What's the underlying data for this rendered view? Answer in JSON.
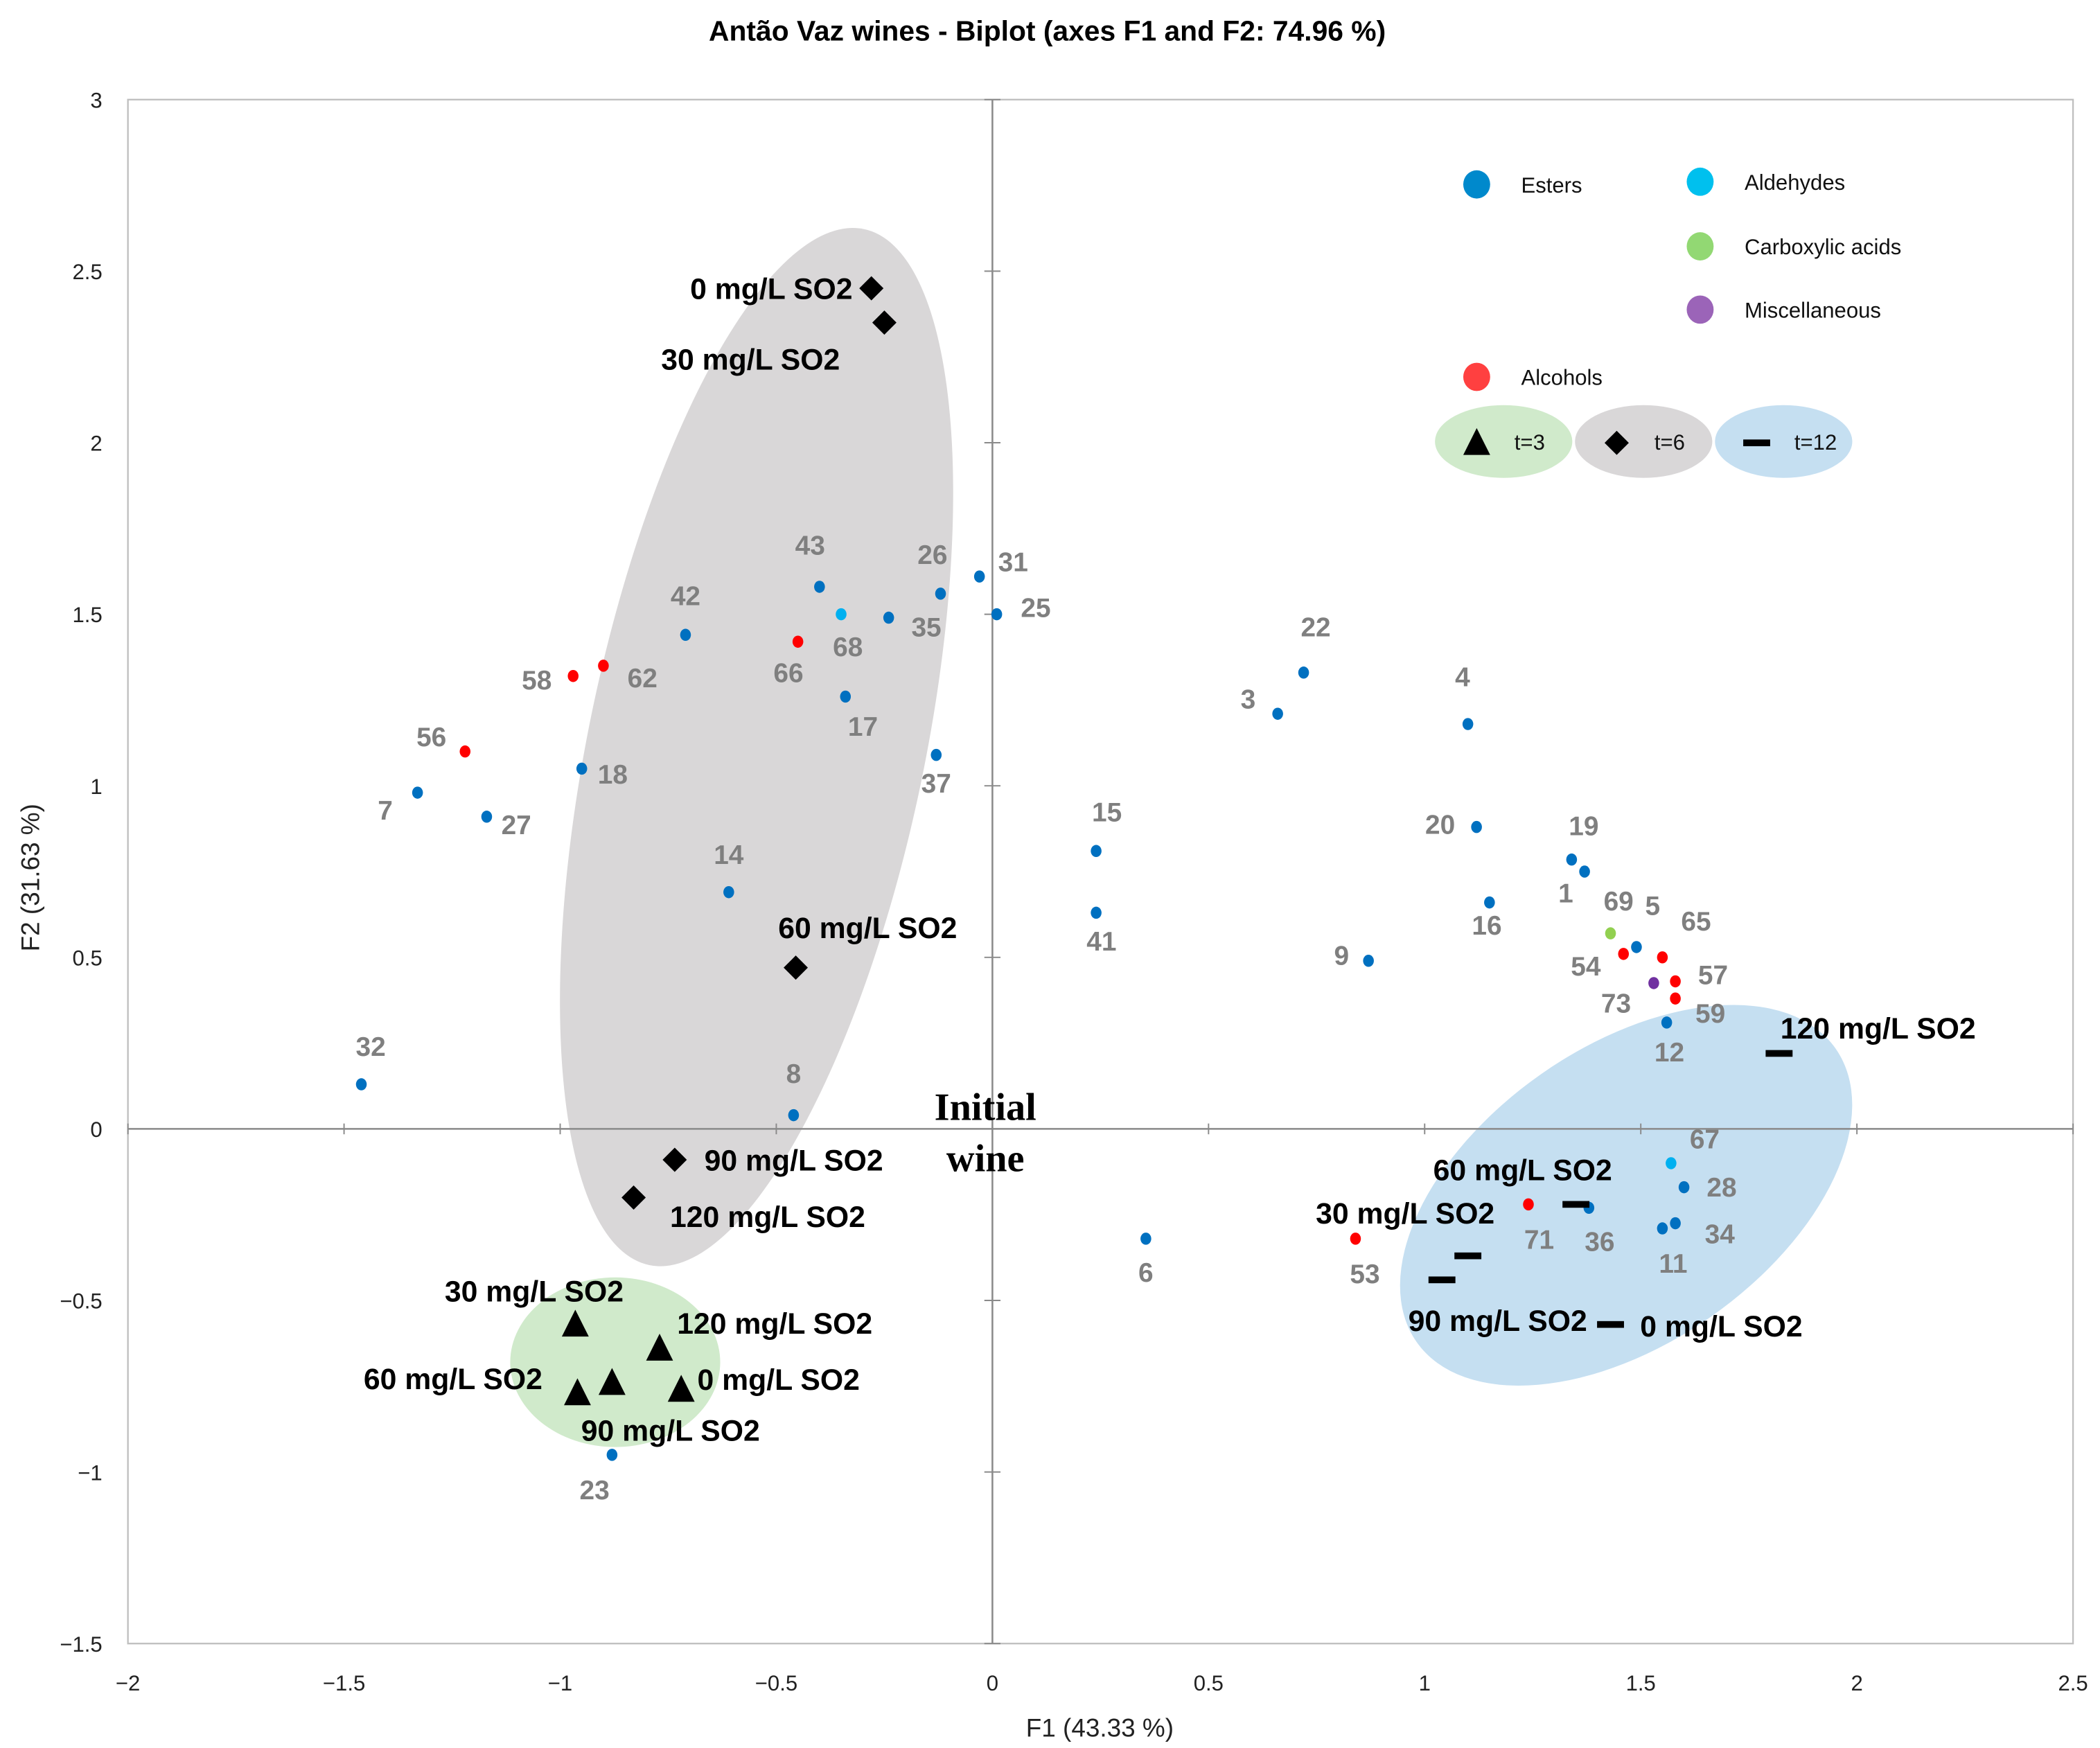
{
  "chart_data": {
    "type": "scatter",
    "title": "Antão Vaz wines - Biplot (axes F1 and F2: 74.96 %)",
    "xlabel": "F1 (43.33 %)",
    "ylabel": "F2 (31.63 %)",
    "xlim": [
      -2,
      2.5
    ],
    "ylim": [
      -1.5,
      3
    ],
    "xticks": [
      "−2",
      "−1.5",
      "−1",
      "−0.5",
      "0",
      "0.5",
      "1",
      "1.5",
      "2",
      "2.5"
    ],
    "xtick_values": [
      -2,
      -1.5,
      -1,
      -0.5,
      0,
      0.5,
      1,
      1.5,
      2,
      2.5
    ],
    "yticks": [
      "−1.5",
      "−1",
      "−0.5",
      "0",
      "0.5",
      "1",
      "1.5",
      "2",
      "2.5",
      "3"
    ],
    "ytick_values": [
      -1.5,
      -1,
      -0.5,
      0,
      0.5,
      1,
      1.5,
      2,
      2.5,
      3
    ],
    "grid": false,
    "legend_placement": "top-right",
    "categories": [
      {
        "name": "Esters",
        "color": "#0070C0",
        "legend_color": "#0089CC"
      },
      {
        "name": "Aldehydes",
        "color": "#00B0F0",
        "legend_color": "#00C0EE"
      },
      {
        "name": "Carboxylic acids",
        "color": "#92D050",
        "legend_color": "#92D873"
      },
      {
        "name": "Miscellaneous",
        "color": "#7030A0",
        "legend_color": "#9B64B8"
      },
      {
        "name": "Alcohols",
        "color": "#FF0000",
        "legend_color": "#FF4040"
      }
    ],
    "variables": [
      {
        "id": "7",
        "category": "Esters",
        "x": -1.33,
        "y": 0.98
      },
      {
        "id": "27",
        "category": "Esters",
        "x": -1.17,
        "y": 0.91
      },
      {
        "id": "18",
        "category": "Esters",
        "x": -0.95,
        "y": 1.05
      },
      {
        "id": "56",
        "category": "Alcohols",
        "x": -1.22,
        "y": 1.1
      },
      {
        "id": "58",
        "category": "Alcohols",
        "x": -0.97,
        "y": 1.32
      },
      {
        "id": "62",
        "category": "Alcohols",
        "x": -0.9,
        "y": 1.35
      },
      {
        "id": "42",
        "category": "Esters",
        "x": -0.71,
        "y": 1.44
      },
      {
        "id": "43",
        "category": "Esters",
        "x": -0.4,
        "y": 1.58
      },
      {
        "id": "68",
        "category": "Aldehydes",
        "x": -0.35,
        "y": 1.5
      },
      {
        "id": "66",
        "category": "Alcohols",
        "x": -0.45,
        "y": 1.42
      },
      {
        "id": "35",
        "category": "Esters",
        "x": -0.24,
        "y": 1.49
      },
      {
        "id": "26",
        "category": "Esters",
        "x": -0.12,
        "y": 1.56
      },
      {
        "id": "31",
        "category": "Esters",
        "x": -0.03,
        "y": 1.61
      },
      {
        "id": "25",
        "category": "Esters",
        "x": 0.01,
        "y": 1.5
      },
      {
        "id": "17",
        "category": "Esters",
        "x": -0.34,
        "y": 1.26
      },
      {
        "id": "37",
        "category": "Esters",
        "x": -0.13,
        "y": 1.09
      },
      {
        "id": "14",
        "category": "Esters",
        "x": -0.61,
        "y": 0.69
      },
      {
        "id": "32",
        "category": "Esters",
        "x": -1.46,
        "y": 0.13
      },
      {
        "id": "8",
        "category": "Esters",
        "x": -0.46,
        "y": 0.04
      },
      {
        "id": "23",
        "category": "Esters",
        "x": -0.88,
        "y": -0.95
      },
      {
        "id": "6",
        "category": "Esters",
        "x": 0.355,
        "y": -0.32
      },
      {
        "id": "15",
        "category": "Esters",
        "x": 0.24,
        "y": 0.81
      },
      {
        "id": "41",
        "category": "Esters",
        "x": 0.24,
        "y": 0.63
      },
      {
        "id": "3",
        "category": "Esters",
        "x": 0.66,
        "y": 1.21
      },
      {
        "id": "22",
        "category": "Esters",
        "x": 0.72,
        "y": 1.33
      },
      {
        "id": "4",
        "category": "Esters",
        "x": 1.1,
        "y": 1.18
      },
      {
        "id": "20",
        "category": "Esters",
        "x": 1.12,
        "y": 0.88
      },
      {
        "id": "19",
        "category": "Esters",
        "x": 1.34,
        "y": 0.785
      },
      {
        "id": "1",
        "category": "Esters",
        "x": 1.37,
        "y": 0.75
      },
      {
        "id": "16",
        "category": "Esters",
        "x": 1.15,
        "y": 0.66
      },
      {
        "id": "9",
        "category": "Esters",
        "x": 0.87,
        "y": 0.49
      },
      {
        "id": "69",
        "category": "Carboxylic acids",
        "x": 1.43,
        "y": 0.57
      },
      {
        "id": "5",
        "category": "Esters",
        "x": 1.49,
        "y": 0.53
      },
      {
        "id": "54",
        "category": "Alcohols",
        "x": 1.46,
        "y": 0.51
      },
      {
        "id": "65",
        "category": "Alcohols",
        "x": 1.55,
        "y": 0.5
      },
      {
        "id": "57",
        "category": "Alcohols",
        "x": 1.58,
        "y": 0.43
      },
      {
        "id": "73",
        "category": "Miscellaneous",
        "x": 1.53,
        "y": 0.425
      },
      {
        "id": "59",
        "category": "Alcohols",
        "x": 1.58,
        "y": 0.38
      },
      {
        "id": "12",
        "category": "Esters",
        "x": 1.56,
        "y": 0.31
      },
      {
        "id": "67",
        "category": "Aldehydes",
        "x": 1.57,
        "y": -0.1
      },
      {
        "id": "28",
        "category": "Esters",
        "x": 1.6,
        "y": -0.17
      },
      {
        "id": "36",
        "category": "Esters",
        "x": 1.38,
        "y": -0.23
      },
      {
        "id": "71",
        "category": "Alcohols",
        "x": 1.24,
        "y": -0.22
      },
      {
        "id": "11",
        "category": "Esters",
        "x": 1.55,
        "y": -0.29
      },
      {
        "id": "34",
        "category": "Esters",
        "x": 1.58,
        "y": -0.275
      },
      {
        "id": "53",
        "category": "Alcohols",
        "x": 0.84,
        "y": -0.32
      }
    ],
    "samples": [
      {
        "group": "t=6",
        "marker": "diamond",
        "label": "0 mg/L SO2",
        "x": -0.28,
        "y": 2.45
      },
      {
        "group": "t=6",
        "marker": "diamond",
        "label": "30 mg/L SO2",
        "x": -0.25,
        "y": 2.35
      },
      {
        "group": "t=6",
        "marker": "diamond",
        "label": "60 mg/L SO2",
        "x": -0.455,
        "y": 0.47
      },
      {
        "group": "t=6",
        "marker": "diamond",
        "label": "90 mg/L SO2",
        "x": -0.735,
        "y": -0.09
      },
      {
        "group": "t=6",
        "marker": "diamond",
        "label": "120 mg/L SO2",
        "x": -0.83,
        "y": -0.2
      },
      {
        "group": "t=3",
        "marker": "triangle",
        "label": "30 mg/L SO2",
        "x": -0.965,
        "y": -0.57
      },
      {
        "group": "t=3",
        "marker": "triangle",
        "label": "120 mg/L SO2",
        "x": -0.77,
        "y": -0.64
      },
      {
        "group": "t=3",
        "marker": "triangle",
        "label": "60 mg/L SO2",
        "x": -0.96,
        "y": -0.77
      },
      {
        "group": "t=3",
        "marker": "triangle",
        "label": "90 mg/L SO2",
        "x": -0.88,
        "y": -0.74
      },
      {
        "group": "t=3",
        "marker": "triangle",
        "label": "0 mg/L SO2",
        "x": -0.72,
        "y": -0.76
      },
      {
        "group": "t=12",
        "marker": "dash",
        "label": "120 mg/L SO2",
        "x": 1.82,
        "y": 0.22
      },
      {
        "group": "t=12",
        "marker": "dash",
        "label": "60 mg/L SO2",
        "x": 1.35,
        "y": -0.22
      },
      {
        "group": "t=12",
        "marker": "dash",
        "label": "30 mg/L SO2",
        "x": 1.1,
        "y": -0.37
      },
      {
        "group": "t=12",
        "marker": "dash",
        "label": "90 mg/L SO2",
        "x": 1.04,
        "y": -0.44
      },
      {
        "group": "t=12",
        "marker": "dash",
        "label": "0 mg/L SO2",
        "x": 1.43,
        "y": -0.57
      }
    ],
    "groups": [
      {
        "label": "t=3",
        "marker": "triangle",
        "color": "#D0EACB"
      },
      {
        "label": "t=6",
        "marker": "diamond",
        "color": "#D9D7D8"
      },
      {
        "label": "t=12",
        "marker": "dash",
        "color": "#C5DFF1"
      }
    ],
    "annotation": {
      "line1": "Initial",
      "line2": "wine"
    }
  }
}
